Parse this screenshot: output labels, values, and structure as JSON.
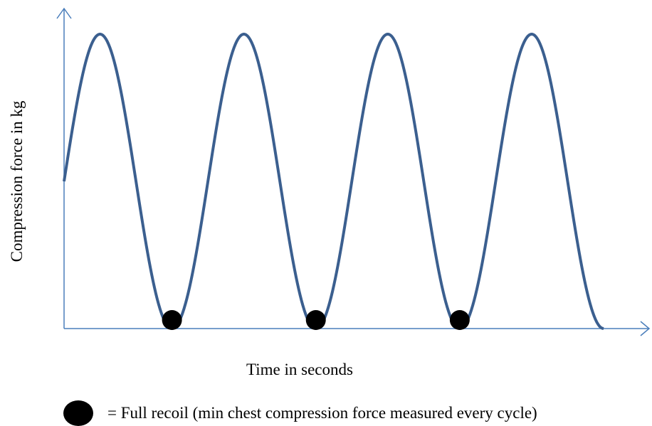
{
  "colors": {
    "axis": "#4a7ebb",
    "curve": "#3b5f8f",
    "marker": "#000000"
  },
  "axes": {
    "x_label": "Time in seconds",
    "y_label": "Compression force in kg"
  },
  "curve": {
    "shape": "sinusoid",
    "cycles": 3.75,
    "recoil_points_marked": 3
  },
  "legend": {
    "marker": "filled-black-circle",
    "text": "= Full recoil (min chest compression force measured every cycle)"
  }
}
